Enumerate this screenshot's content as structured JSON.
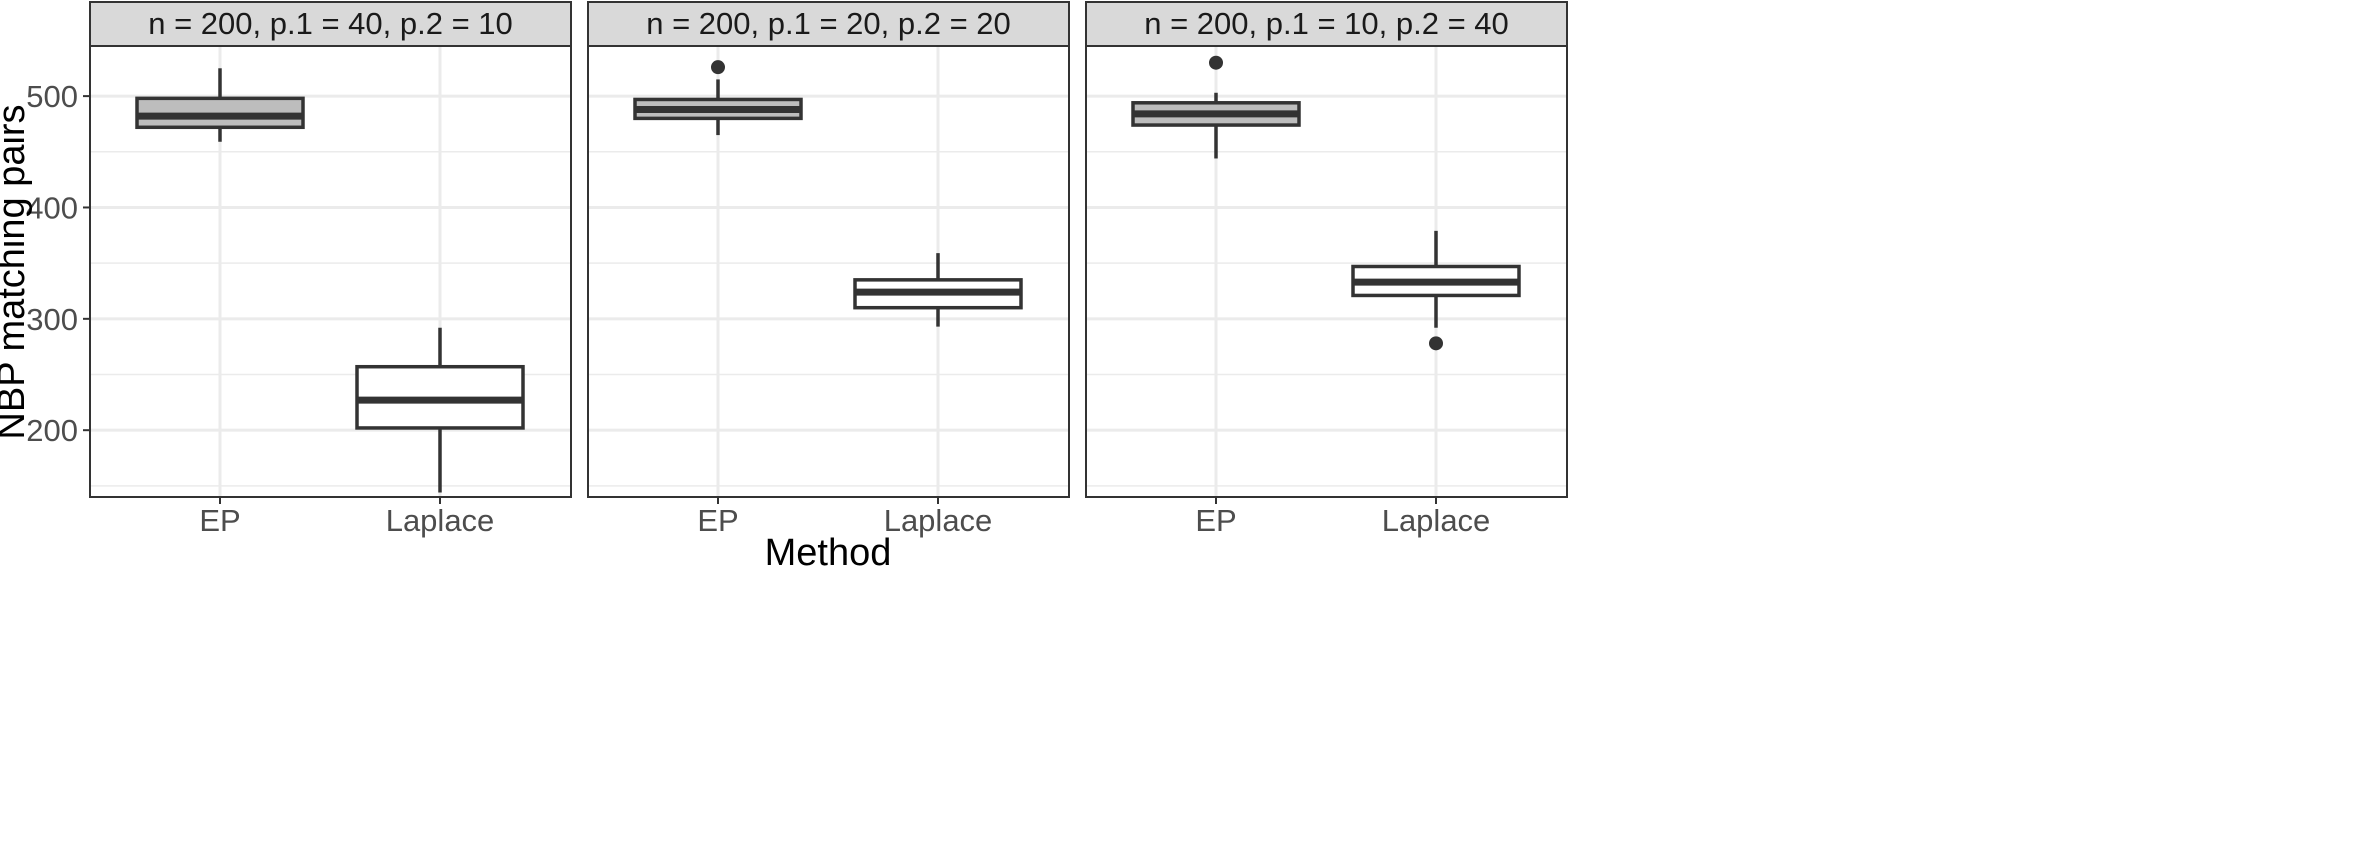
{
  "chart_data": {
    "type": "boxplot",
    "xlabel": "Method",
    "ylabel": "NBP matching pairs",
    "categories": [
      "EP",
      "Laplace"
    ],
    "ylim": [
      140,
      545
    ],
    "yticks": [
      200,
      300,
      400,
      500
    ],
    "colors": {
      "EP": "#bdbdbd",
      "Laplace": "#ffffff"
    },
    "grid": true,
    "panels": [
      {
        "title": "n = 200, p.1 = 40, p.2 = 10",
        "boxes": [
          {
            "category": "EP",
            "whisker_low": 459,
            "q1": 472,
            "median": 482,
            "q3": 498,
            "whisker_high": 525,
            "outliers": []
          },
          {
            "category": "Laplace",
            "whisker_low": 144,
            "q1": 202,
            "median": 227,
            "q3": 257,
            "whisker_high": 292,
            "outliers": []
          }
        ]
      },
      {
        "title": "n = 200, p.1 = 20, p.2 = 20",
        "boxes": [
          {
            "category": "EP",
            "whisker_low": 465,
            "q1": 480,
            "median": 488,
            "q3": 497,
            "whisker_high": 515,
            "outliers": [
              526
            ]
          },
          {
            "category": "Laplace",
            "whisker_low": 293,
            "q1": 310,
            "median": 324,
            "q3": 335,
            "whisker_high": 359,
            "outliers": []
          }
        ]
      },
      {
        "title": "n = 200, p.1 = 10, p.2 = 40",
        "boxes": [
          {
            "category": "EP",
            "whisker_low": 444,
            "q1": 474,
            "median": 484,
            "q3": 494,
            "whisker_high": 503,
            "outliers": [
              530
            ]
          },
          {
            "category": "Laplace",
            "whisker_low": 292,
            "q1": 321,
            "median": 333,
            "q3": 347,
            "whisker_high": 379,
            "outliers": [
              278
            ]
          }
        ]
      }
    ]
  }
}
